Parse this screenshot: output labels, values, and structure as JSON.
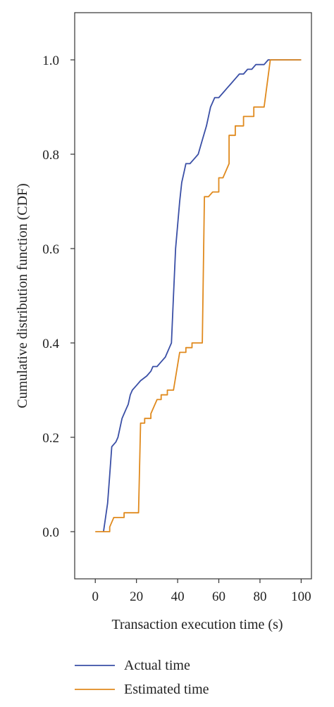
{
  "chart_data": {
    "type": "line",
    "xlabel": "Transaction execution time (s)",
    "ylabel": "Cumulative distribution function (CDF)",
    "xlim": [
      -10,
      105
    ],
    "ylim": [
      -0.1,
      1.1
    ],
    "xticks": [
      0,
      20,
      40,
      60,
      80,
      100
    ],
    "yticks": [
      0.0,
      0.2,
      0.4,
      0.6,
      0.8,
      1.0
    ],
    "xtick_labels": [
      "0",
      "20",
      "40",
      "60",
      "80",
      "100"
    ],
    "ytick_labels": [
      "0.0",
      "0.2",
      "0.4",
      "0.6",
      "0.8",
      "1.0"
    ],
    "grid": false,
    "legend_position": "bottom",
    "series": [
      {
        "name": "Actual time",
        "color": "#3a4fa6",
        "x": [
          4,
          5,
          6,
          7,
          8,
          10,
          11,
          12,
          13,
          14,
          15,
          16,
          17,
          18,
          20,
          22,
          25,
          27,
          28,
          30,
          32,
          34,
          35,
          36,
          37,
          38,
          39,
          40,
          41,
          42,
          43,
          44,
          46,
          48,
          50,
          52,
          54,
          55,
          56,
          57,
          58,
          60,
          62,
          64,
          66,
          68,
          70,
          72,
          74,
          76,
          78,
          80,
          82,
          84,
          85,
          86,
          88,
          90,
          92,
          94,
          96,
          98,
          100
        ],
        "y": [
          0.0,
          0.03,
          0.06,
          0.12,
          0.18,
          0.19,
          0.2,
          0.22,
          0.24,
          0.25,
          0.26,
          0.27,
          0.29,
          0.3,
          0.31,
          0.32,
          0.33,
          0.34,
          0.35,
          0.35,
          0.36,
          0.37,
          0.38,
          0.39,
          0.4,
          0.5,
          0.6,
          0.65,
          0.7,
          0.74,
          0.76,
          0.78,
          0.78,
          0.79,
          0.8,
          0.83,
          0.86,
          0.88,
          0.9,
          0.91,
          0.92,
          0.92,
          0.93,
          0.94,
          0.95,
          0.96,
          0.97,
          0.97,
          0.98,
          0.98,
          0.99,
          0.99,
          0.99,
          1.0,
          1.0,
          1.0,
          1.0,
          1.0,
          1.0,
          1.0,
          1.0,
          1.0,
          1.0
        ]
      },
      {
        "name": "Estimated time",
        "color": "#e08a1e",
        "x": [
          0,
          7,
          7,
          9,
          9,
          14,
          14,
          19,
          19,
          21,
          22,
          24,
          24,
          27,
          27,
          30,
          30,
          32,
          32,
          35,
          35,
          38,
          38,
          41,
          42,
          44,
          44,
          47,
          47,
          50,
          50,
          52,
          52,
          53,
          54,
          55,
          55,
          57,
          57,
          60,
          60,
          62,
          62,
          65,
          65,
          67,
          67,
          68,
          68,
          70,
          70,
          72,
          72,
          75,
          75,
          77,
          77,
          79,
          79,
          82,
          82,
          85,
          85,
          100
        ],
        "y": [
          0.0,
          0.0,
          0.01,
          0.03,
          0.03,
          0.03,
          0.04,
          0.04,
          0.04,
          0.04,
          0.23,
          0.23,
          0.24,
          0.24,
          0.25,
          0.28,
          0.28,
          0.28,
          0.29,
          0.29,
          0.3,
          0.3,
          0.3,
          0.38,
          0.38,
          0.38,
          0.39,
          0.39,
          0.4,
          0.4,
          0.4,
          0.4,
          0.4,
          0.71,
          0.71,
          0.71,
          0.71,
          0.72,
          0.72,
          0.72,
          0.75,
          0.75,
          0.75,
          0.78,
          0.84,
          0.84,
          0.84,
          0.84,
          0.86,
          0.86,
          0.86,
          0.86,
          0.88,
          0.88,
          0.88,
          0.88,
          0.9,
          0.9,
          0.9,
          0.9,
          0.9,
          1.0,
          1.0,
          1.0
        ]
      }
    ]
  }
}
